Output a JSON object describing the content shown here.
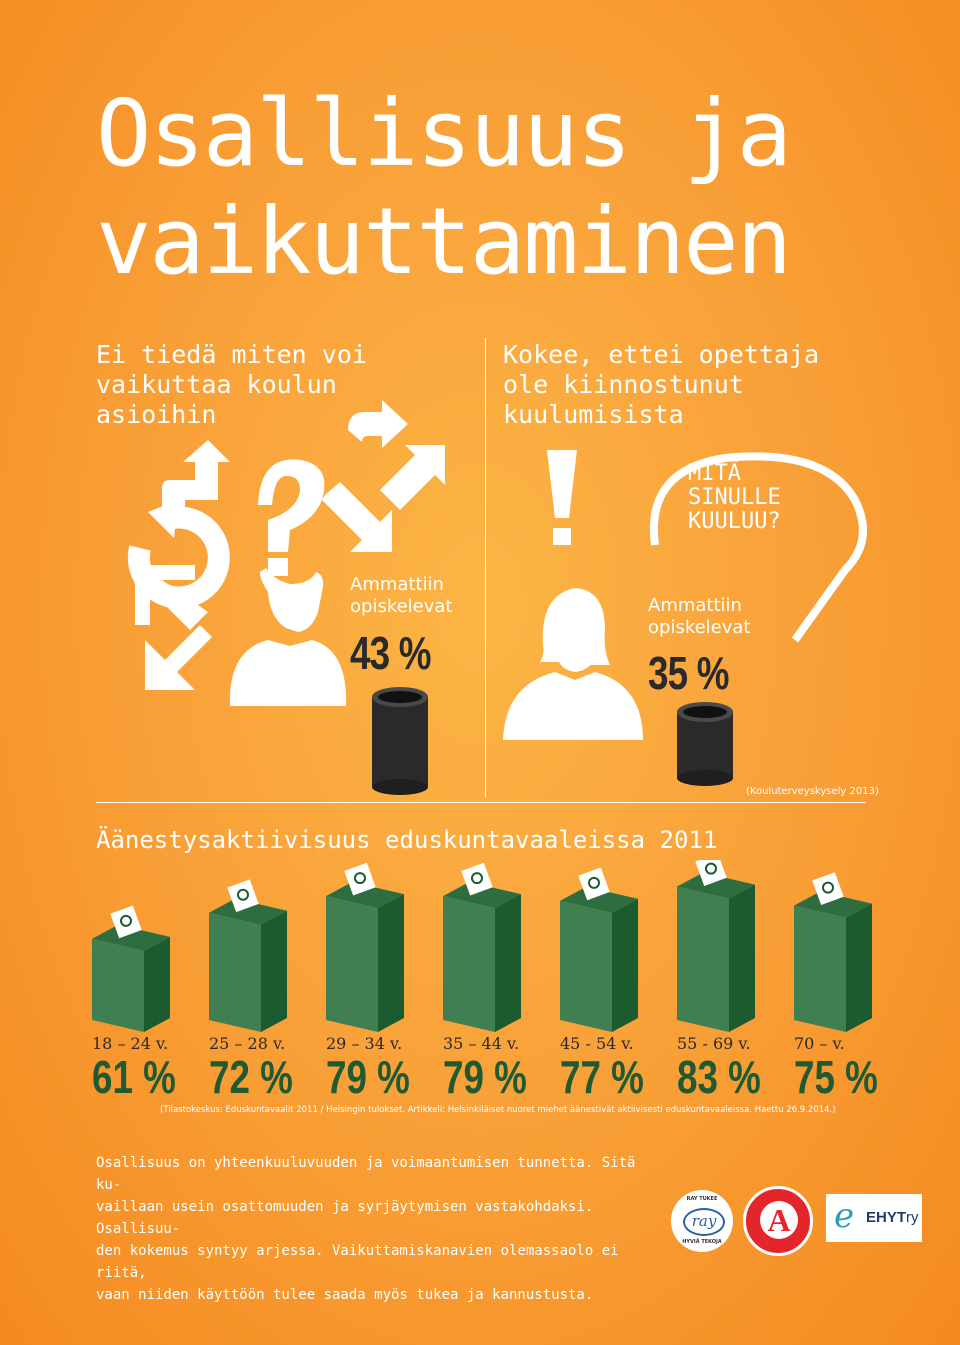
{
  "title": {
    "line1": "Osallisuus ja",
    "line2": "vaikuttaminen"
  },
  "left_panel": {
    "heading_lines": [
      "Ei tiedä miten voi",
      "vaikuttaa koulun",
      "asioihin"
    ],
    "caption_lines": [
      "Ammattiin",
      "opiskelevat"
    ],
    "percent": "43 %"
  },
  "right_panel": {
    "heading_lines": [
      "Kokee, ettei opettaja",
      "ole kiinnostunut",
      "kuulumisista"
    ],
    "bubble_lines": [
      "MITÄ",
      "SINULLE",
      "KUULUU?"
    ],
    "caption_lines": [
      "Ammattiin",
      "opiskelevat"
    ],
    "percent": "35 %",
    "source": "(Kouluterveyskysely 2013)"
  },
  "section_title": "Äänestysaktiivisuus eduskuntavaaleissa 2011",
  "chart_data": {
    "type": "bar",
    "title": "Äänestysaktiivisuus eduskuntavaaleissa 2011",
    "categories": [
      "18 – 24 v.",
      "25 – 28 v.",
      "29 – 34 v.",
      "35 – 44 v.",
      "45 - 54 v.",
      "55 - 69 v.",
      "70 – v."
    ],
    "values": [
      61,
      72,
      79,
      79,
      77,
      83,
      75
    ],
    "labels": [
      "61 %",
      "72 %",
      "79 %",
      "79 %",
      "77 %",
      "83 %",
      "75 %"
    ],
    "ylim": [
      0,
      100
    ],
    "colors": {
      "box_front": "#3f7f52",
      "box_side": "#1c5a30",
      "box_top": "#2e6d40"
    }
  },
  "chart_source": "(Tilastokeskus: Eduskuntavaalit 2011 / Helsingin tulokset. Artikkeli: Helsinkiläiset nuoret miehet äänestivät aktiivisesti eduskuntavaaleissa. Haettu 26.9.2014.)",
  "body_lines": [
    "Osallisuus on yhteenkuuluvuuden ja voimaantumisen tunnetta. Sitä ku-",
    "vaillaan usein osattomuuden ja syrjäytymisen vastakohdaksi. Osallisuu-",
    "den kokemus syntyy arjessa. Vaikuttamiskanavien olemassaolo ei riitä,",
    "vaan niiden käyttöön tulee saada myös tukea ja kannustusta."
  ],
  "logos": {
    "ray": {
      "top": "RAY TUKEE",
      "center": "ray",
      "bottom": "HYVIÄ TEKOJA"
    },
    "ammattiopiskelijat": {
      "letter": "A"
    },
    "ehyt": {
      "mark": "e",
      "text": "EHYT",
      "suffix": "ry"
    }
  },
  "icon_names": [
    "question-mark-icon",
    "exclamation-icon",
    "arrow-icons",
    "male-silhouette-icon",
    "female-silhouette-icon",
    "speech-bubble-icon",
    "ballot-box-icon"
  ]
}
